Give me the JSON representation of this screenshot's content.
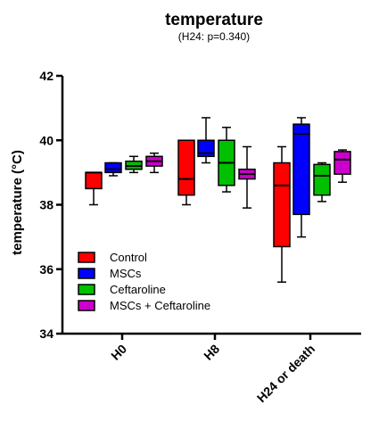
{
  "chart_data": {
    "type": "box",
    "title": "temperature",
    "subtitle": "(H24: p=0.340)",
    "ylabel": "temperature (°C)",
    "xlabel": "",
    "ylim": [
      34,
      42
    ],
    "yticks": [
      34,
      36,
      38,
      40,
      42
    ],
    "ytick_labels": [
      "34",
      "36",
      "38",
      "40",
      "42"
    ],
    "categories": [
      "H0",
      "H8",
      "H24 or death"
    ],
    "legend_position": "lower-left",
    "series": [
      {
        "name": "Control",
        "color": "#ff0000",
        "boxes": [
          {
            "min": 38.0,
            "q1": 38.5,
            "median": 39.0,
            "q3": 39.0,
            "max": 39.0
          },
          {
            "min": 38.0,
            "q1": 38.3,
            "median": 38.8,
            "q3": 40.0,
            "max": 40.0
          },
          {
            "min": 35.6,
            "q1": 36.7,
            "median": 38.6,
            "q3": 39.3,
            "max": 39.8
          }
        ]
      },
      {
        "name": "MSCs",
        "color": "#0000ff",
        "boxes": [
          {
            "min": 38.9,
            "q1": 39.0,
            "median": 39.1,
            "q3": 39.3,
            "max": 39.3
          },
          {
            "min": 39.3,
            "q1": 39.5,
            "median": 39.6,
            "q3": 40.0,
            "max": 40.7
          },
          {
            "min": 37.0,
            "q1": 37.7,
            "median": 40.2,
            "q3": 40.5,
            "max": 40.7
          }
        ]
      },
      {
        "name": "Ceftaroline",
        "color": "#00c000",
        "boxes": [
          {
            "min": 39.0,
            "q1": 39.1,
            "median": 39.2,
            "q3": 39.35,
            "max": 39.5
          },
          {
            "min": 38.4,
            "q1": 38.6,
            "median": 39.3,
            "q3": 40.0,
            "max": 40.4
          },
          {
            "min": 38.1,
            "q1": 38.3,
            "median": 38.9,
            "q3": 39.25,
            "max": 39.3
          }
        ]
      },
      {
        "name": "MSCs + Ceftaroline",
        "color": "#cc00cc",
        "boxes": [
          {
            "min": 39.0,
            "q1": 39.2,
            "median": 39.35,
            "q3": 39.5,
            "max": 39.6
          },
          {
            "min": 37.9,
            "q1": 38.8,
            "median": 38.95,
            "q3": 39.1,
            "max": 39.8
          },
          {
            "min": 38.7,
            "q1": 38.95,
            "median": 39.4,
            "q3": 39.65,
            "max": 39.7
          }
        ]
      }
    ]
  }
}
